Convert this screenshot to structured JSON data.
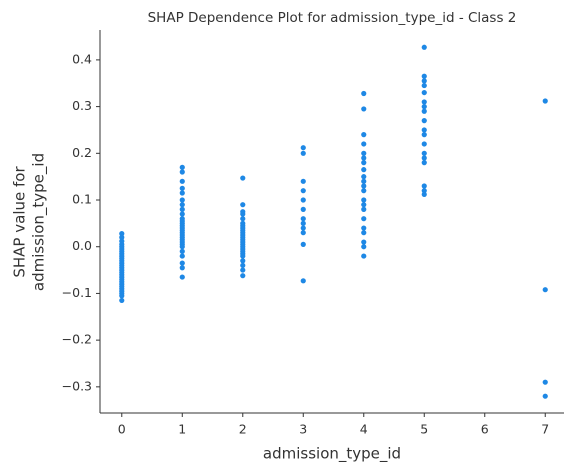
{
  "chart_data": {
    "type": "scatter",
    "title": "SHAP Dependence Plot for admission_type_id - Class 2",
    "xlabel": "admission_type_id",
    "ylabel": [
      "SHAP value for",
      "admission_type_id"
    ],
    "color": "#1e88e5",
    "xlim": [
      -0.36,
      7.31
    ],
    "ylim": [
      -0.356,
      0.464
    ],
    "xticks": [
      0,
      1,
      2,
      3,
      4,
      5,
      6,
      7
    ],
    "yticks": [
      {
        "value": -0.3,
        "label": "−0.3"
      },
      {
        "value": -0.2,
        "label": "−0.2"
      },
      {
        "value": -0.1,
        "label": "−0.1"
      },
      {
        "value": 0,
        "label": "0.0"
      },
      0.1,
      0.2,
      0.3,
      0.4
    ],
    "x": [
      0,
      0,
      0,
      0,
      0,
      0,
      0,
      0,
      0,
      0,
      0,
      0,
      0,
      0,
      0,
      0,
      0,
      0,
      0,
      0,
      0,
      0,
      0,
      0,
      0,
      0,
      0,
      1,
      1,
      1,
      1,
      1,
      1,
      1,
      1,
      1,
      1,
      1,
      1,
      1,
      1,
      1,
      1,
      1,
      1,
      1,
      1,
      1,
      1,
      1,
      1,
      1,
      1,
      1,
      2,
      2,
      2,
      2,
      2,
      2,
      2,
      2,
      2,
      2,
      2,
      2,
      2,
      2,
      2,
      2,
      2,
      2,
      2,
      2,
      2,
      2,
      2,
      2,
      3,
      3,
      3,
      3,
      3,
      3,
      3,
      3,
      3,
      3,
      3,
      3,
      4,
      4,
      4,
      4,
      4,
      4,
      4,
      4,
      4,
      4,
      4,
      4,
      4,
      4,
      4,
      4,
      4,
      4,
      4,
      4,
      4,
      5,
      5,
      5,
      5,
      5,
      5,
      5,
      5,
      5,
      5,
      5,
      5,
      5,
      5,
      5,
      5,
      5,
      5,
      7,
      7,
      7,
      7
    ],
    "values": [
      0.028,
      0.02,
      0.012,
      0.005,
      0,
      -0.005,
      -0.01,
      -0.015,
      -0.02,
      -0.025,
      -0.03,
      -0.035,
      -0.04,
      -0.045,
      -0.05,
      -0.055,
      -0.06,
      -0.065,
      -0.07,
      -0.075,
      -0.08,
      -0.085,
      -0.09,
      -0.095,
      -0.1,
      -0.105,
      -0.115,
      0.17,
      0.16,
      0.14,
      0.125,
      0.115,
      0.1,
      0.09,
      0.08,
      0.07,
      0.06,
      0.055,
      0.05,
      0.045,
      0.04,
      0.035,
      0.03,
      0.025,
      0.02,
      0.015,
      0.01,
      0.005,
      0,
      -0.01,
      -0.02,
      -0.035,
      -0.045,
      -0.065,
      0.147,
      0.09,
      0.075,
      0.07,
      0.06,
      0.05,
      0.045,
      0.04,
      0.035,
      0.03,
      0.025,
      0.02,
      0.015,
      0.01,
      0.005,
      0,
      -0.005,
      -0.01,
      -0.015,
      -0.02,
      -0.03,
      -0.04,
      -0.05,
      -0.062,
      0.212,
      0.2,
      0.14,
      0.12,
      0.1,
      0.08,
      0.06,
      0.05,
      0.04,
      0.03,
      0.005,
      -0.073,
      0.328,
      0.295,
      0.24,
      0.22,
      0.2,
      0.19,
      0.18,
      0.165,
      0.15,
      0.14,
      0.13,
      0.12,
      0.1,
      0.09,
      0.08,
      0.06,
      0.04,
      0.03,
      0.01,
      0,
      -0.02,
      0.427,
      0.365,
      0.355,
      0.345,
      0.33,
      0.31,
      0.3,
      0.29,
      0.27,
      0.25,
      0.24,
      0.22,
      0.2,
      0.19,
      0.18,
      0.13,
      0.12,
      0.112,
      0.312,
      -0.092,
      -0.29,
      -0.32
    ]
  }
}
